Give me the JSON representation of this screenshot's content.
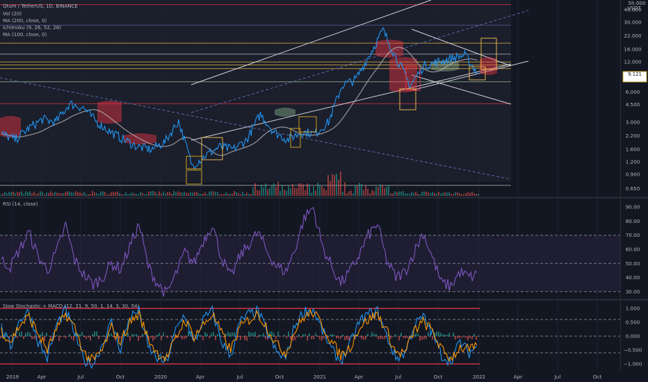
{
  "legend": {
    "symbol": "Qtum / TetherUS, 1D, BINANCE",
    "indicators": [
      "Vol (20)",
      "MA (200, close, 0)",
      "Ichimoku (9, 26, 52, 26)",
      "MA (100, close, 0)"
    ],
    "rsi": "RSI (14, close)",
    "stoch": "Slow Stochastic + MACD (12, 21, 9, 50, 1, 14, 3, 30, 54)"
  },
  "axis": {
    "unit": "USDT",
    "top_cut": "5h.000",
    "price_ticks": [
      "40.000",
      "30.000",
      "22.000",
      "16.000",
      "12.000",
      "9.000",
      "6.000",
      "4.500",
      "3.000",
      "2.200",
      "1.600",
      "1.200",
      "0.900",
      "0.650"
    ],
    "rsi_ticks": [
      "90.00",
      "80.00",
      "70.00",
      "60.00",
      "50.00",
      "40.00",
      "30.00"
    ],
    "stoch_ticks": [
      "1.000",
      "0.500",
      "0.000",
      "−0.500",
      "−1.000"
    ],
    "time_labels": [
      "2019",
      "Apr",
      "Jul",
      "Oct",
      "2020",
      "Apr",
      "Jul",
      "Oct",
      "2021",
      "Apr",
      "Jul",
      "Oct",
      "2022",
      "Apr",
      "Jul",
      "Oct"
    ]
  },
  "current_price": {
    "value": "9.121",
    "sub": ""
  },
  "colors": {
    "bg": "#131722",
    "price": "#2196f3",
    "ma200": "#787b86",
    "ma100": "#b7b7b7",
    "rsi": "#7e57c2",
    "stoch_k": "#2196f3",
    "stoch_d": "#ff9800",
    "macd": "#ffffff",
    "trend": "#d1d4dc",
    "support": "#f7c948",
    "resist": "#f23645",
    "cloud_bear": "#f23645",
    "cloud_bull": "#a5d6a7"
  },
  "chart_data": [
    {
      "type": "line",
      "title": "Qtum / TetherUS, 1D, BINANCE",
      "ylabel": "USDT",
      "log_scale": true,
      "x_range": [
        "2019-01",
        "2021-12"
      ],
      "ylim": [
        0.55,
        50
      ],
      "series": [
        {
          "name": "Qtum / TetherUS",
          "x": [
            "2019-01",
            "2019-02",
            "2019-03",
            "2019-04",
            "2019-05",
            "2019-06",
            "2019-07",
            "2019-08",
            "2019-09",
            "2019-10",
            "2019-11",
            "2019-12",
            "2020-01",
            "2020-02",
            "2020-03",
            "2020-04",
            "2020-05",
            "2020-06",
            "2020-07",
            "2020-08",
            "2020-09",
            "2020-10",
            "2020-11",
            "2020-12",
            "2021-01",
            "2021-02",
            "2021-03",
            "2021-04",
            "2021-05",
            "2021-06",
            "2021-07",
            "2021-08",
            "2021-09",
            "2021-10",
            "2021-11",
            "2021-12"
          ],
          "values": [
            2.3,
            2.0,
            2.6,
            3.2,
            3.0,
            4.6,
            4.2,
            3.0,
            2.4,
            2.0,
            1.7,
            1.6,
            1.9,
            3.1,
            1.1,
            1.4,
            1.7,
            1.6,
            2.0,
            3.6,
            2.4,
            2.0,
            2.4,
            2.3,
            3.0,
            7.0,
            8.0,
            14,
            25,
            13,
            7.0,
            11,
            12,
            13,
            14,
            9.1
          ]
        }
      ],
      "horizontal_levels": [
        45,
        28,
        18.5,
        14.4,
        12,
        11.2,
        10.3,
        7.6,
        4.6,
        0.7
      ]
    },
    {
      "type": "line",
      "title": "RSI (14, close)",
      "ylim": [
        25,
        95
      ],
      "series": [
        {
          "name": "RSI",
          "values": [
            52,
            48,
            60,
            72,
            55,
            45,
            58,
            77,
            52,
            42,
            35,
            40,
            50,
            46,
            62,
            78,
            48,
            36,
            28,
            42,
            58,
            50,
            66,
            78,
            54,
            40,
            55,
            64,
            72,
            58,
            48,
            44,
            60,
            82,
            90,
            62,
            48,
            36,
            44,
            56,
            70,
            78,
            52,
            40,
            44,
            58,
            72,
            54,
            36,
            34,
            44,
            40,
            42
          ]
        }
      ]
    },
    {
      "type": "line",
      "title": "Slow Stochastic + MACD (12, 21, 9, 50, 1, 14, 3, 30, 54)",
      "ylim": [
        -1.2,
        1.2
      ],
      "series": [
        {
          "name": "Stoch %K",
          "values": [
            0.3,
            -0.4,
            0.6,
            0.9,
            -0.2,
            -0.8,
            0.4,
            0.95,
            0.1,
            -0.9,
            -1.0,
            -0.3,
            0.5,
            -0.5,
            0.7,
            0.9,
            -0.4,
            -0.8,
            -0.95,
            0.2,
            0.8,
            -0.3,
            0.6,
            0.9,
            -0.2,
            -0.7,
            0.5,
            0.8,
            0.9,
            0.1,
            -0.6,
            -0.8,
            0.4,
            0.9,
            0.95,
            0.2,
            -0.5,
            -0.9,
            -0.3,
            0.5,
            0.8,
            0.9,
            0.0,
            -0.8,
            -0.6,
            0.4,
            0.7,
            0.1,
            -0.7,
            -0.9,
            -0.2,
            -0.6,
            -0.3
          ]
        },
        {
          "name": "Stoch %D",
          "values": [
            0.2,
            -0.2,
            0.4,
            0.7,
            0.1,
            -0.5,
            0.2,
            0.8,
            0.3,
            -0.6,
            -0.9,
            -0.5,
            0.3,
            -0.2,
            0.5,
            0.8,
            -0.1,
            -0.6,
            -0.8,
            -0.1,
            0.6,
            0.0,
            0.4,
            0.8,
            0.1,
            -0.5,
            0.3,
            0.6,
            0.8,
            0.3,
            -0.3,
            -0.6,
            0.2,
            0.7,
            0.85,
            0.4,
            -0.2,
            -0.7,
            -0.4,
            0.3,
            0.6,
            0.8,
            0.2,
            -0.6,
            -0.6,
            0.2,
            0.5,
            0.2,
            -0.5,
            -0.8,
            -0.4,
            -0.5,
            -0.4
          ]
        }
      ]
    }
  ]
}
